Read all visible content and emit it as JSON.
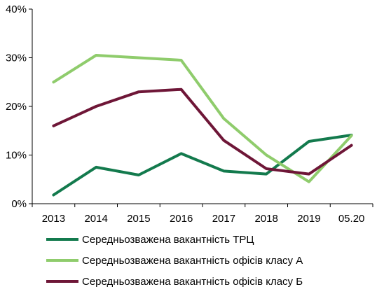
{
  "chart_data": {
    "type": "line",
    "categories": [
      "2013",
      "2014",
      "2015",
      "2016",
      "2017",
      "2018",
      "2019",
      "05.20"
    ],
    "ylim": [
      0,
      40
    ],
    "yticks": [
      0,
      10,
      20,
      30,
      40
    ],
    "ytick_labels": [
      "0%",
      "10%",
      "20%",
      "30%",
      "40%"
    ],
    "grid": false,
    "legend_position": "bottom",
    "series": [
      {
        "name": "Середньозважена вакантність ТРЦ",
        "color": "#137a4d",
        "values": [
          1.8,
          7.5,
          5.9,
          10.3,
          6.7,
          6.1,
          12.8,
          14.1
        ]
      },
      {
        "name": "Середньозважена вакантність офісів класу А",
        "color": "#8fcc6c",
        "values": [
          25.0,
          30.5,
          30.0,
          29.5,
          17.5,
          10.0,
          4.5,
          14.0
        ]
      },
      {
        "name": "Середньозважена вакантність офісів класу Б",
        "color": "#6e1637",
        "values": [
          16.0,
          20.0,
          23.0,
          23.5,
          13.0,
          7.2,
          6.1,
          12.0
        ]
      }
    ]
  }
}
